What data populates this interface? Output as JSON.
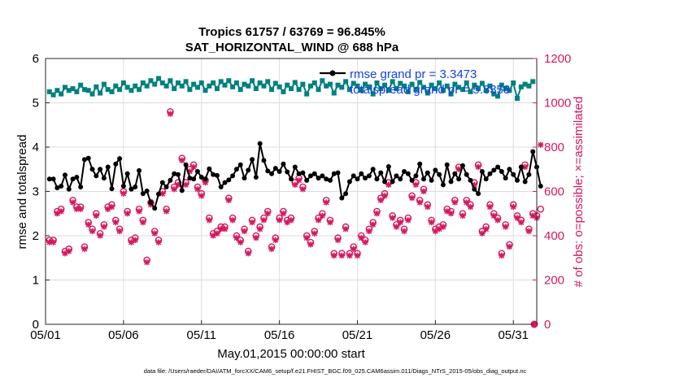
{
  "chart_data": {
    "type": "line",
    "title_line1": "Tropics 61757 / 63769 = 96.845%",
    "title_line2": "SAT_HORIZONTAL_WIND @ 688 hPa",
    "xlabel": "May.01,2015 00:00:00 start",
    "ylabel_left": "rmse and totalspread",
    "ylabel_right": "# of obs: o=possible; ×=assimilated",
    "ylim_left": [
      0,
      6
    ],
    "ylim_right": [
      0,
      1200
    ],
    "xlim": [
      0,
      31.5
    ],
    "x_ticks": [
      0,
      5,
      10,
      15,
      20,
      25,
      30
    ],
    "x_tick_labels": [
      "05/01",
      "05/06",
      "05/11",
      "05/16",
      "05/21",
      "05/26",
      "05/31"
    ],
    "y_ticks_left": [
      0,
      1,
      2,
      3,
      4,
      5,
      6
    ],
    "y_ticks_right": [
      0,
      200,
      400,
      600,
      800,
      1000,
      1200
    ],
    "legend": [
      {
        "label": "rmse grand pr = 3.3473",
        "color": "#000000"
      },
      {
        "label": "totalspread grand pr = 5.3358",
        "color": "#008080"
      }
    ],
    "colors": {
      "rmse": "#000000",
      "totalspread": "#008080",
      "obs": "#d6175f",
      "legend_text": "#1540e6"
    },
    "series": [
      {
        "name": "rmse",
        "values": [
          3.28,
          3.28,
          3.08,
          3.12,
          3.37,
          3.05,
          3.28,
          3.32,
          3.1,
          3.72,
          3.75,
          3.5,
          3.35,
          3.5,
          3.3,
          3.55,
          3.06,
          3.62,
          3.74,
          3.12,
          3.4,
          3.05,
          3.1,
          3.47,
          2.95,
          3.01,
          2.75,
          2.62,
          2.94,
          3.2,
          3.1,
          3.25,
          3.4,
          3.38,
          3.02,
          3.6,
          3.3,
          3.28,
          3.45,
          3.32,
          3.28,
          3.51,
          3.38,
          3.36,
          3.1,
          3.2,
          3.26,
          3.35,
          3.5,
          3.6,
          3.3,
          3.48,
          3.72,
          3.32,
          4.08,
          3.7,
          3.46,
          3.4,
          3.52,
          3.45,
          3.62,
          3.44,
          3.28,
          3.55,
          3.4,
          3.42,
          3.25,
          3.35,
          3.4,
          3.3,
          3.35,
          3.28,
          3.25,
          3.4,
          3.42,
          2.85,
          2.95,
          3.22,
          3.35,
          3.28,
          3.4,
          3.3,
          3.35,
          3.5,
          3.28,
          3.42,
          3.22,
          3.56,
          3.22,
          3.35,
          3.28,
          3.45,
          3.4,
          3.25,
          3.35,
          3.62,
          3.28,
          3.42,
          3.25,
          3.48,
          3.38,
          3.15,
          3.6,
          3.22,
          3.4,
          3.28,
          3.58,
          3.38,
          3.25,
          3.05,
          2.95,
          3.45,
          3.28,
          3.4,
          3.48,
          3.55,
          3.45,
          3.3,
          3.5,
          3.38,
          3.25,
          3.55,
          3.22,
          3.38,
          3.9,
          3.55,
          3.12
        ]
      },
      {
        "name": "totalspread",
        "values": [
          5.25,
          5.18,
          5.28,
          5.2,
          5.35,
          5.28,
          5.32,
          5.25,
          5.4,
          5.3,
          5.28,
          5.2,
          5.36,
          5.22,
          5.42,
          5.3,
          5.25,
          5.38,
          5.3,
          5.45,
          5.35,
          5.28,
          5.38,
          5.3,
          5.45,
          5.38,
          5.5,
          5.42,
          5.55,
          5.45,
          5.38,
          5.5,
          5.32,
          5.45,
          5.38,
          5.48,
          5.3,
          5.42,
          5.35,
          5.45,
          5.28,
          5.38,
          5.45,
          5.32,
          5.48,
          5.4,
          5.5,
          5.36,
          5.45,
          5.3,
          5.42,
          5.38,
          5.5,
          5.32,
          5.45,
          5.38,
          5.48,
          5.3,
          5.44,
          5.36,
          5.25,
          5.4,
          5.32,
          5.46,
          5.3,
          5.42,
          5.2,
          5.38,
          5.45,
          5.3,
          5.5,
          5.38,
          5.42,
          5.22,
          5.4,
          5.35,
          5.48,
          5.3,
          5.44,
          5.38,
          5.28,
          5.42,
          5.36,
          5.2,
          5.45,
          5.32,
          5.4,
          5.28,
          5.48,
          5.32,
          5.44,
          5.38,
          5.25,
          5.42,
          5.3,
          5.46,
          5.35,
          5.22,
          5.4,
          5.32,
          5.45,
          5.28,
          5.38,
          5.2,
          5.42,
          5.35,
          5.3,
          5.45,
          5.25,
          5.4,
          5.32,
          5.44,
          5.28,
          5.38,
          5.2,
          5.15,
          5.4,
          5.32,
          5.28,
          5.45,
          5.1,
          5.36,
          5.42,
          5.38,
          5.48
        ]
      },
      {
        "name": "obs_possible",
        "values": [
          380,
          380,
          510,
          520,
          330,
          340,
          560,
          530,
          530,
          350,
          460,
          430,
          500,
          410,
          450,
          530,
          540,
          470,
          430,
          600,
          510,
          380,
          390,
          520,
          470,
          290,
          550,
          420,
          380,
          600,
          520,
          960,
          620,
          640,
          750,
          640,
          700,
          720,
          620,
          590,
          650,
          480,
          410,
          420,
          440,
          440,
          570,
          480,
          400,
          380,
          430,
          330,
          470,
          400,
          440,
          480,
          510,
          350,
          390,
          480,
          510,
          470,
          480,
          640,
          660,
          620,
          400,
          370,
          420,
          480,
          500,
          560,
          470,
          320,
          390,
          320,
          440,
          320,
          350,
          320,
          400,
          380,
          430,
          460,
          510,
          570,
          590,
          640,
          490,
          450,
          470,
          430,
          480,
          580,
          640,
          560,
          610,
          540,
          470,
          430,
          440,
          450,
          520,
          510,
          560,
          710,
          500,
          560,
          540,
          640,
          720,
          420,
          440,
          540,
          500,
          480,
          320,
          450,
          360,
          540,
          490,
          470,
          720,
          430,
          500,
          490,
          520
        ]
      },
      {
        "name": "obs_assimilated",
        "values": [
          370,
          370,
          500,
          510,
          320,
          330,
          550,
          520,
          520,
          340,
          450,
          420,
          490,
          400,
          440,
          520,
          530,
          460,
          420,
          590,
          500,
          370,
          380,
          510,
          460,
          280,
          540,
          410,
          370,
          590,
          510,
          950,
          610,
          630,
          740,
          630,
          690,
          710,
          610,
          580,
          640,
          470,
          400,
          410,
          430,
          430,
          560,
          470,
          390,
          370,
          420,
          320,
          460,
          390,
          430,
          470,
          500,
          340,
          380,
          470,
          500,
          460,
          470,
          630,
          650,
          610,
          390,
          360,
          410,
          470,
          490,
          550,
          460,
          310,
          380,
          310,
          430,
          310,
          340,
          310,
          390,
          370,
          420,
          450,
          500,
          560,
          580,
          630,
          480,
          440,
          460,
          420,
          470,
          570,
          630,
          550,
          600,
          530,
          460,
          420,
          430,
          440,
          510,
          500,
          550,
          700,
          490,
          550,
          530,
          630,
          710,
          410,
          430,
          530,
          490,
          470,
          310,
          440,
          350,
          530,
          480,
          460,
          710,
          420,
          490,
          480,
          810
        ]
      }
    ],
    "final_obs_zero": 0
  },
  "footer": "data file: /Users/raeder/DAI/ATM_forcXX/CAM6_setup/f.e21.FHIST_BGC.f09_025.CAM6assim.011/Diags_NTrS_2015-05/obs_diag_output.nc"
}
